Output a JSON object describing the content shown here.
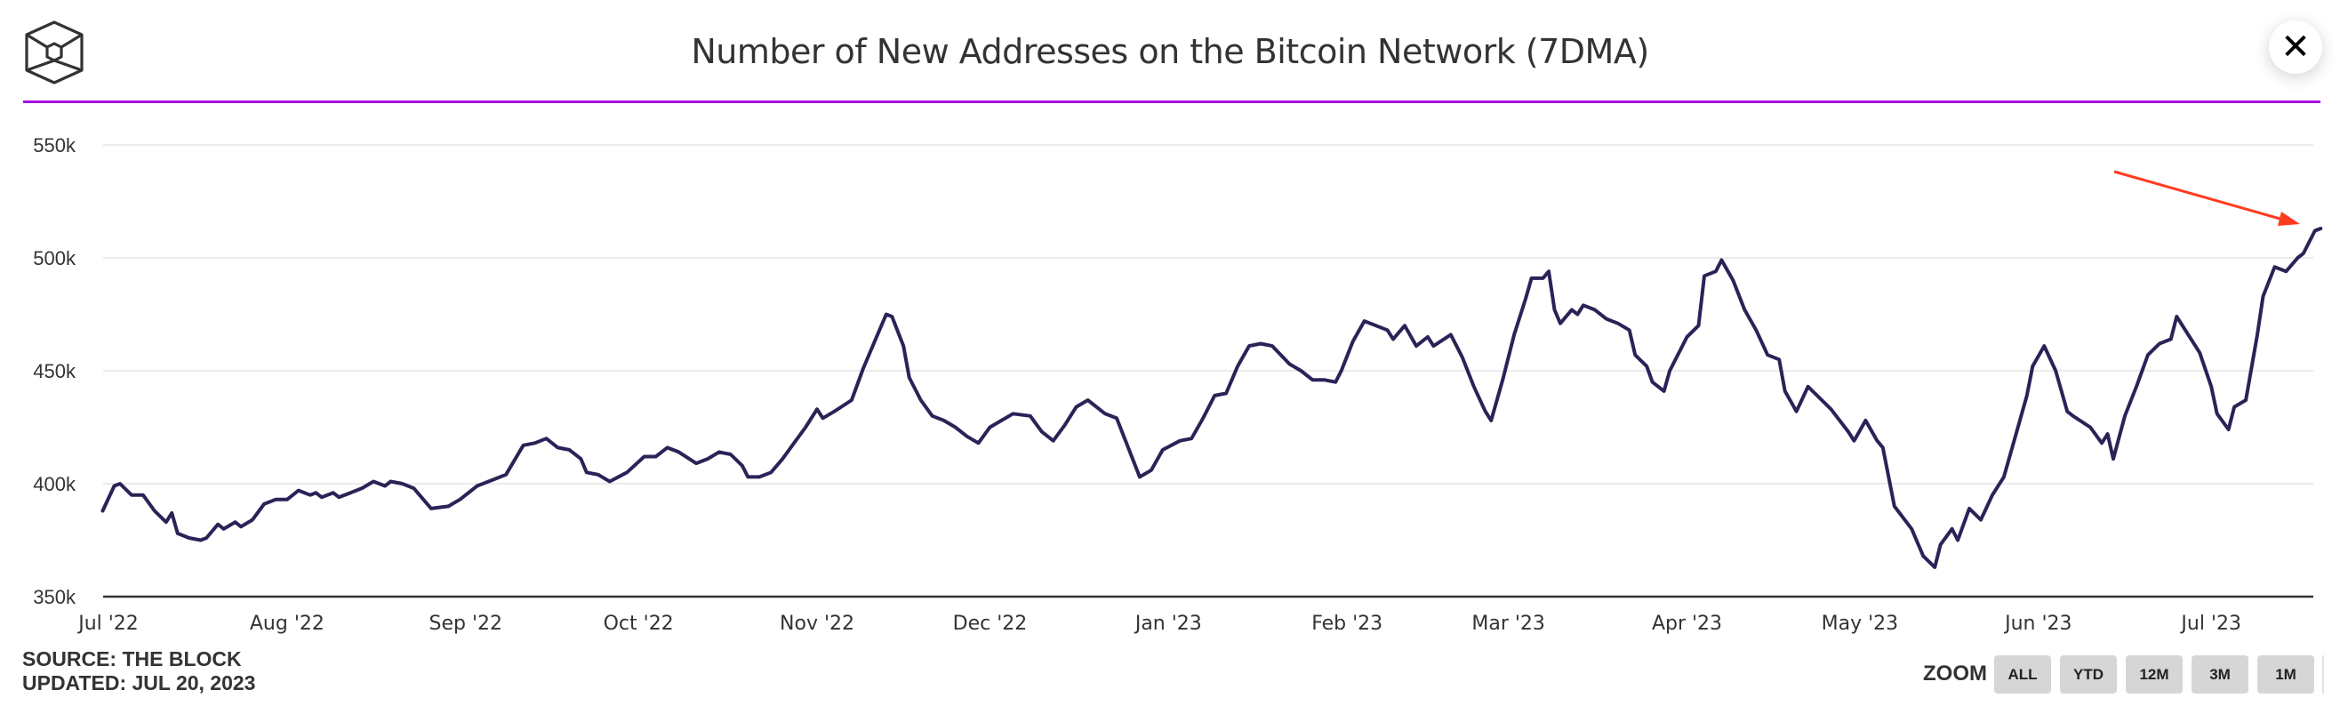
{
  "header": {
    "title": "Number of New Addresses on the Bitcoin Network (7DMA)",
    "logo_icon": "the-block-cube-logo-icon",
    "close_icon": "close-icon",
    "close_label": "✕",
    "accent_color": "#a50fe0"
  },
  "footer": {
    "source": "SOURCE: THE BLOCK",
    "updated": "UPDATED: JUL 20, 2023"
  },
  "zoom_controls": {
    "label": "ZOOM",
    "buttons": [
      "ALL",
      "YTD",
      "12M",
      "3M",
      "1M"
    ]
  },
  "chart_data": {
    "type": "line",
    "title": "Number of New Addresses on the Bitcoin Network (7DMA)",
    "xlabel": "",
    "ylabel": "",
    "x_unit": "days since 2022-07-01",
    "x_start_date": "2022-07-01",
    "x_range_days": [
      -1,
      384
    ],
    "ylim": [
      350000,
      550000
    ],
    "y_ticks": [
      350000,
      400000,
      450000,
      500000,
      550000
    ],
    "y_tick_labels": [
      "350k",
      "400k",
      "450k",
      "500k",
      "550k"
    ],
    "x_ticks": [
      {
        "label": "Jul '22",
        "day": 0
      },
      {
        "label": "Aug '22",
        "day": 31
      },
      {
        "label": "Sep '22",
        "day": 62
      },
      {
        "label": "Oct '22",
        "day": 92
      },
      {
        "label": "Nov '22",
        "day": 123
      },
      {
        "label": "Dec '22",
        "day": 153
      },
      {
        "label": "Jan '23",
        "day": 184
      },
      {
        "label": "Feb '23",
        "day": 215
      },
      {
        "label": "Mar '23",
        "day": 243
      },
      {
        "label": "Apr '23",
        "day": 274
      },
      {
        "label": "May '23",
        "day": 304
      },
      {
        "label": "Jun '23",
        "day": 335
      },
      {
        "label": "Jul '23",
        "day": 365
      }
    ],
    "grid": true,
    "legend": "none",
    "series": [
      {
        "name": "New Addresses (7DMA)",
        "color": "#2a2357",
        "x": [
          -1,
          1,
          2,
          4,
          6,
          8,
          10,
          11,
          12,
          14,
          16,
          17,
          19,
          20,
          22,
          23,
          25,
          27,
          29,
          31,
          33,
          35,
          36,
          37,
          39,
          40,
          42,
          44,
          46,
          48,
          49,
          51,
          53,
          54,
          56,
          59,
          61,
          64,
          67,
          69,
          72,
          74,
          76,
          78,
          80,
          82,
          83,
          85,
          87,
          90,
          93,
          95,
          97,
          99,
          102,
          104,
          106,
          108,
          110,
          111,
          113,
          115,
          117,
          119,
          121,
          123,
          124,
          126,
          129,
          131,
          133,
          135,
          136,
          138,
          139,
          141,
          143,
          145,
          147,
          149,
          151,
          153,
          155,
          157,
          160,
          162,
          164,
          166,
          168,
          170,
          173,
          175,
          177,
          179,
          181,
          183,
          186,
          188,
          190,
          192,
          194,
          196,
          198,
          200,
          202,
          205,
          207,
          209,
          211,
          213,
          214,
          216,
          218,
          220,
          222,
          223,
          225,
          227,
          229,
          230,
          233,
          235,
          237,
          239,
          240,
          242,
          244,
          246,
          247,
          249,
          250,
          251,
          252,
          254,
          255,
          256,
          258,
          260,
          262,
          264,
          265,
          267,
          268,
          270,
          271,
          274,
          276,
          277,
          279,
          280,
          282,
          284,
          286,
          288,
          290,
          291,
          293,
          295,
          297,
          299,
          302,
          303,
          305,
          307,
          308,
          310,
          313,
          315,
          317,
          318,
          320,
          321,
          323,
          325,
          327,
          329,
          331,
          333,
          334,
          336,
          338,
          340,
          341,
          344,
          346,
          347,
          348,
          350,
          352,
          354,
          356,
          358,
          359,
          361,
          363,
          365,
          366,
          368,
          369,
          371,
          373,
          374,
          376,
          378,
          380,
          381,
          383,
          384
        ],
        "values": [
          388000,
          399000,
          400000,
          395000,
          395000,
          388000,
          383000,
          387000,
          378000,
          376000,
          375000,
          376000,
          382000,
          380000,
          383000,
          381000,
          384000,
          391000,
          393000,
          393000,
          397000,
          395000,
          396000,
          394000,
          396000,
          394000,
          396000,
          398000,
          401000,
          399000,
          401000,
          400000,
          398000,
          395000,
          389000,
          390000,
          393000,
          399000,
          402000,
          404000,
          417000,
          418000,
          420000,
          416000,
          415000,
          411000,
          405000,
          404000,
          401000,
          405000,
          412000,
          412000,
          416000,
          414000,
          409000,
          411000,
          414000,
          413000,
          408000,
          403000,
          403000,
          405000,
          411000,
          418000,
          425000,
          433000,
          429000,
          432000,
          437000,
          451000,
          463000,
          475000,
          474000,
          461000,
          447000,
          437000,
          430000,
          428000,
          425000,
          421000,
          418000,
          425000,
          428000,
          431000,
          430000,
          423000,
          419000,
          426000,
          434000,
          437000,
          431000,
          429000,
          416000,
          403000,
          406000,
          415000,
          419000,
          420000,
          429000,
          439000,
          440000,
          452000,
          461000,
          462000,
          461000,
          453000,
          450000,
          446000,
          446000,
          445000,
          450000,
          463000,
          472000,
          470000,
          468000,
          464000,
          470000,
          461000,
          465000,
          461000,
          466000,
          456000,
          443000,
          432000,
          428000,
          446000,
          466000,
          482000,
          491000,
          491000,
          494000,
          477000,
          471000,
          477000,
          475000,
          479000,
          477000,
          473000,
          471000,
          468000,
          457000,
          452000,
          445000,
          441000,
          450000,
          465000,
          470000,
          492000,
          494000,
          499000,
          490000,
          477000,
          468000,
          457000,
          455000,
          441000,
          432000,
          443000,
          438000,
          433000,
          423000,
          419000,
          428000,
          419000,
          416000,
          390000,
          380000,
          368000,
          363000,
          373000,
          380000,
          375000,
          389000,
          384000,
          395000,
          403000,
          421000,
          439000,
          452000,
          461000,
          450000,
          432000,
          430000,
          425000,
          418000,
          422000,
          411000,
          430000,
          443000,
          457000,
          462000,
          464000,
          474000,
          466000,
          458000,
          443000,
          431000,
          424000,
          434000,
          437000,
          466000,
          483000,
          496000,
          494000,
          500000,
          502000,
          512000,
          513000
        ]
      }
    ],
    "annotations": [
      {
        "type": "arrow",
        "color": "#ff3b1f",
        "points_to": "latest value (~513k)"
      }
    ]
  }
}
